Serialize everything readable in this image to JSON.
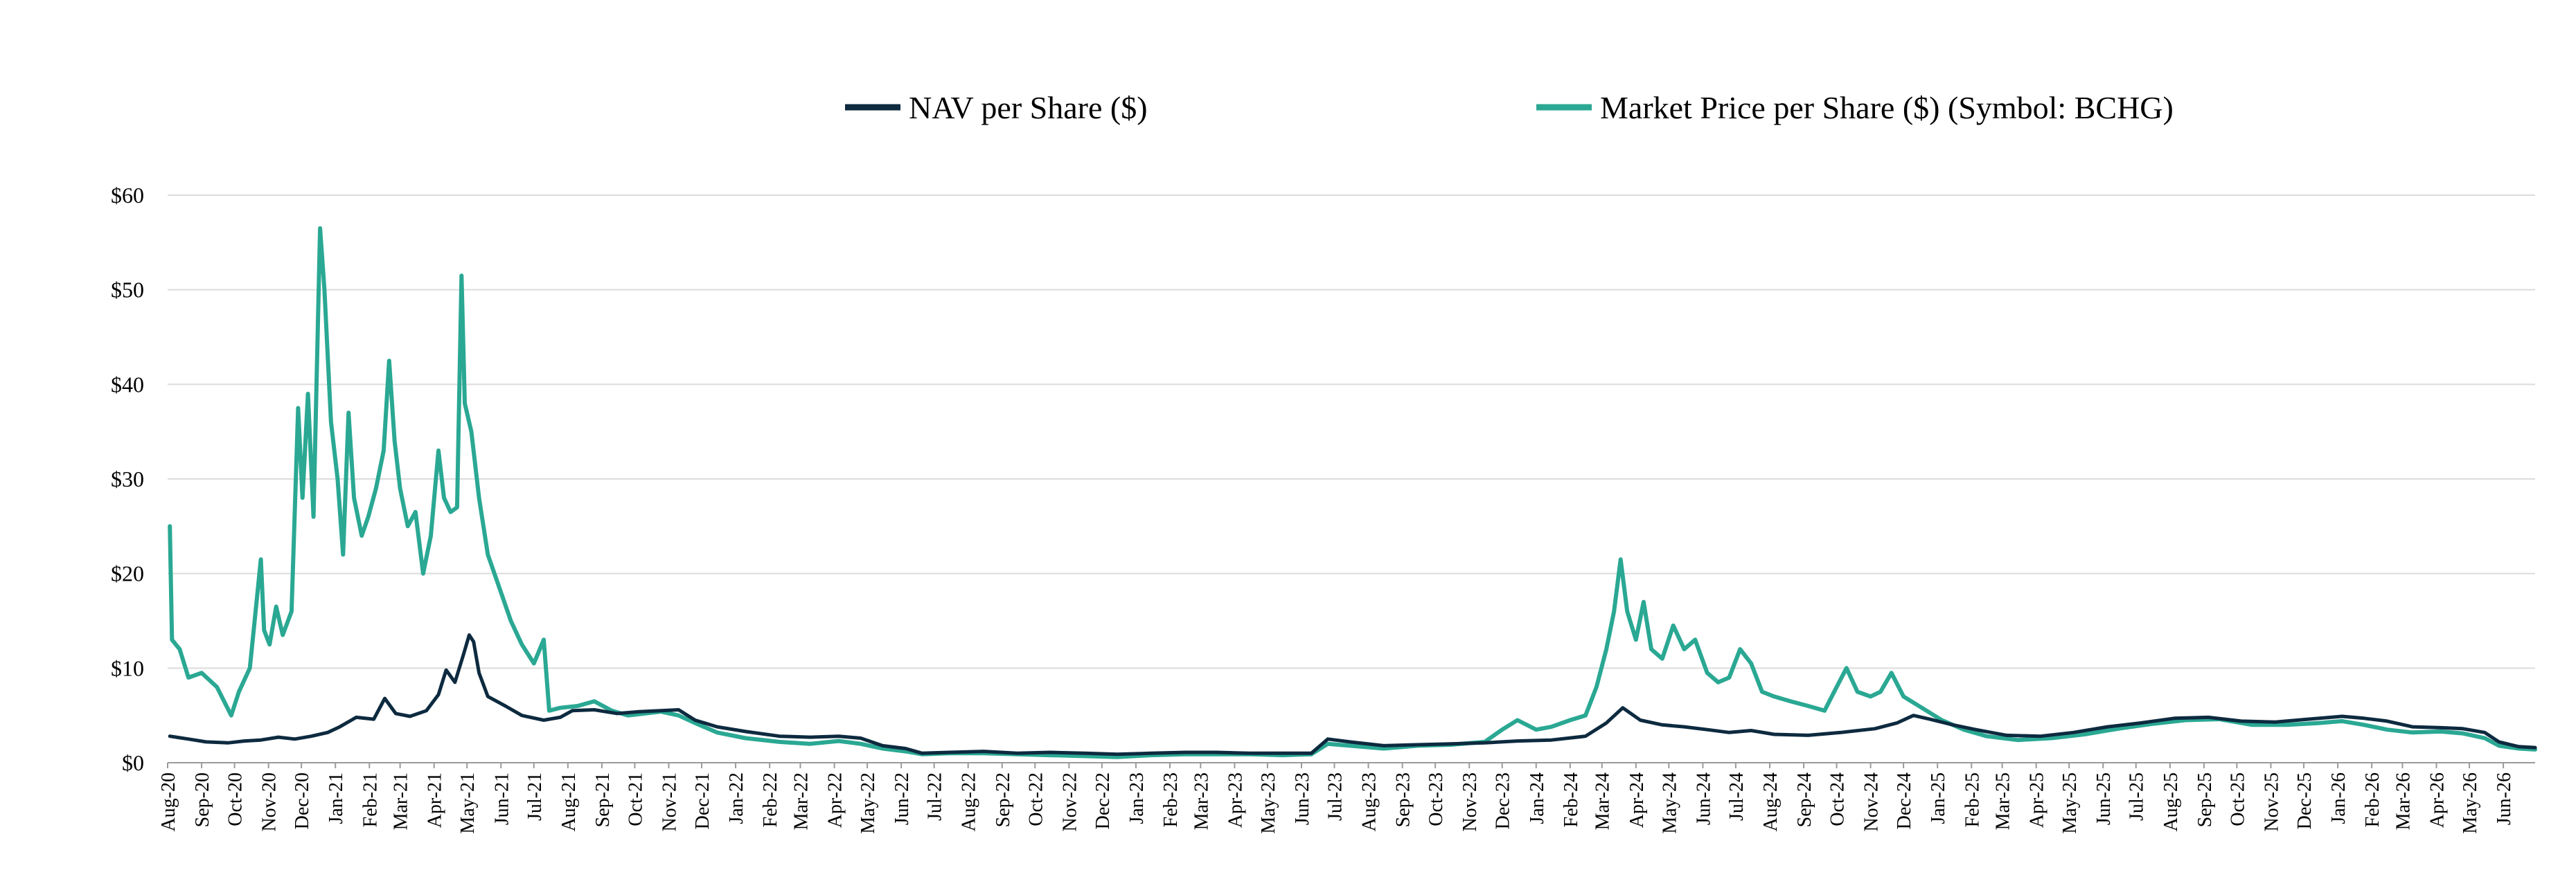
{
  "chart_data": {
    "type": "line",
    "xlabel": "",
    "ylabel": "",
    "x_range": [
      "2020-08-01",
      "2026-06-30"
    ],
    "ylim": [
      0,
      60
    ],
    "y_ticks": [
      0,
      10,
      20,
      30,
      40,
      50,
      60
    ],
    "y_tick_labels": [
      "$0",
      "$10",
      "$20",
      "$30",
      "$40",
      "$50",
      "$60"
    ],
    "x_tick_labels": [
      "Aug-20",
      "Sep-20",
      "Oct-20",
      "Nov-20",
      "Dec-20",
      "Jan-21",
      "Feb-21",
      "Mar-21",
      "Apr-21",
      "May-21",
      "Jun-21",
      "Jul-21",
      "Aug-21",
      "Sep-21",
      "Oct-21",
      "Nov-21",
      "Dec-21",
      "Jan-22",
      "Feb-22",
      "Mar-22",
      "Apr-22",
      "May-22",
      "Jun-22",
      "Jul-22",
      "Aug-22",
      "Sep-22",
      "Oct-22",
      "Nov-22",
      "Dec-22",
      "Jan-23",
      "Feb-23",
      "Mar-23",
      "Apr-23",
      "May-23",
      "Jun-23",
      "Jul-23",
      "Aug-23",
      "Sep-23",
      "Oct-23",
      "Nov-23",
      "Dec-23",
      "Jan-24",
      "Feb-24",
      "Mar-24",
      "Apr-24",
      "May-24",
      "Jun-24",
      "Jul-24",
      "Aug-24",
      "Sep-24",
      "Oct-24",
      "Nov-24",
      "Dec-24",
      "Jan-25",
      "Feb-25",
      "Mar-25",
      "Apr-25",
      "May-25",
      "Jun-25",
      "Jul-25",
      "Aug-25",
      "Sep-25",
      "Oct-25",
      "Nov-25",
      "Dec-25",
      "Jan-26",
      "Feb-26",
      "Mar-26",
      "Apr-26",
      "May-26",
      "Jun-26"
    ],
    "grid": true,
    "legend_position": "top-center",
    "series": [
      {
        "name": "NAV per Share ($)",
        "color": "#0d2a3f",
        "points": [
          [
            "2020-08-03",
            2.8
          ],
          [
            "2020-08-20",
            2.5
          ],
          [
            "2020-09-05",
            2.2
          ],
          [
            "2020-09-25",
            2.1
          ],
          [
            "2020-10-10",
            2.3
          ],
          [
            "2020-10-25",
            2.4
          ],
          [
            "2020-11-10",
            2.7
          ],
          [
            "2020-11-25",
            2.5
          ],
          [
            "2020-12-10",
            2.8
          ],
          [
            "2020-12-25",
            3.2
          ],
          [
            "2021-01-05",
            3.8
          ],
          [
            "2021-01-20",
            4.8
          ],
          [
            "2021-02-05",
            4.6
          ],
          [
            "2021-02-15",
            6.8
          ],
          [
            "2021-02-25",
            5.2
          ],
          [
            "2021-03-10",
            4.9
          ],
          [
            "2021-03-25",
            5.5
          ],
          [
            "2021-04-05",
            7.2
          ],
          [
            "2021-04-12",
            9.8
          ],
          [
            "2021-04-20",
            8.5
          ],
          [
            "2021-04-28",
            11.5
          ],
          [
            "2021-05-03",
            13.5
          ],
          [
            "2021-05-07",
            12.8
          ],
          [
            "2021-05-12",
            9.5
          ],
          [
            "2021-05-20",
            7.0
          ],
          [
            "2021-06-05",
            6.0
          ],
          [
            "2021-06-20",
            5.0
          ],
          [
            "2021-07-10",
            4.5
          ],
          [
            "2021-07-25",
            4.8
          ],
          [
            "2021-08-05",
            5.5
          ],
          [
            "2021-08-25",
            5.6
          ],
          [
            "2021-09-15",
            5.2
          ],
          [
            "2021-10-05",
            5.4
          ],
          [
            "2021-10-25",
            5.5
          ],
          [
            "2021-11-10",
            5.6
          ],
          [
            "2021-11-25",
            4.5
          ],
          [
            "2021-12-15",
            3.8
          ],
          [
            "2022-01-10",
            3.3
          ],
          [
            "2022-02-10",
            2.8
          ],
          [
            "2022-03-10",
            2.7
          ],
          [
            "2022-04-05",
            2.8
          ],
          [
            "2022-04-25",
            2.6
          ],
          [
            "2022-05-15",
            1.8
          ],
          [
            "2022-06-05",
            1.5
          ],
          [
            "2022-06-20",
            1.0
          ],
          [
            "2022-07-15",
            1.1
          ],
          [
            "2022-08-15",
            1.2
          ],
          [
            "2022-09-15",
            1.0
          ],
          [
            "2022-10-15",
            1.1
          ],
          [
            "2022-11-15",
            1.0
          ],
          [
            "2022-12-15",
            0.9
          ],
          [
            "2023-01-15",
            1.0
          ],
          [
            "2023-02-15",
            1.1
          ],
          [
            "2023-03-15",
            1.1
          ],
          [
            "2023-04-15",
            1.0
          ],
          [
            "2023-05-15",
            1.0
          ],
          [
            "2023-06-10",
            1.0
          ],
          [
            "2023-06-25",
            2.5
          ],
          [
            "2023-07-15",
            2.2
          ],
          [
            "2023-08-15",
            1.8
          ],
          [
            "2023-09-15",
            1.9
          ],
          [
            "2023-10-15",
            2.0
          ],
          [
            "2023-11-15",
            2.1
          ],
          [
            "2023-12-15",
            2.3
          ],
          [
            "2024-01-15",
            2.4
          ],
          [
            "2024-02-15",
            2.8
          ],
          [
            "2024-03-05",
            4.2
          ],
          [
            "2024-03-20",
            5.8
          ],
          [
            "2024-04-05",
            4.5
          ],
          [
            "2024-04-25",
            4.0
          ],
          [
            "2024-05-15",
            3.8
          ],
          [
            "2024-06-05",
            3.5
          ],
          [
            "2024-06-25",
            3.2
          ],
          [
            "2024-07-15",
            3.4
          ],
          [
            "2024-08-05",
            3.0
          ],
          [
            "2024-09-05",
            2.9
          ],
          [
            "2024-10-05",
            3.2
          ],
          [
            "2024-11-05",
            3.6
          ],
          [
            "2024-11-25",
            4.2
          ],
          [
            "2024-12-10",
            5.0
          ],
          [
            "2024-12-25",
            4.6
          ],
          [
            "2025-01-15",
            4.0
          ],
          [
            "2025-02-05",
            3.5
          ],
          [
            "2025-03-05",
            2.9
          ],
          [
            "2025-04-05",
            2.8
          ],
          [
            "2025-05-05",
            3.2
          ],
          [
            "2025-06-05",
            3.8
          ],
          [
            "2025-07-05",
            4.2
          ],
          [
            "2025-08-05",
            4.7
          ],
          [
            "2025-09-05",
            4.8
          ],
          [
            "2025-10-05",
            4.4
          ],
          [
            "2025-11-05",
            4.3
          ],
          [
            "2025-12-05",
            4.6
          ],
          [
            "2026-01-05",
            4.9
          ],
          [
            "2026-01-25",
            4.7
          ],
          [
            "2026-02-15",
            4.4
          ],
          [
            "2026-03-10",
            3.8
          ],
          [
            "2026-04-05",
            3.7
          ],
          [
            "2026-04-25",
            3.6
          ],
          [
            "2026-05-15",
            3.2
          ],
          [
            "2026-05-28",
            2.2
          ],
          [
            "2026-06-15",
            1.7
          ],
          [
            "2026-06-30",
            1.6
          ]
        ]
      },
      {
        "name": "Market Price per Share ($) (Symbol: BCHG)",
        "color": "#2aa893",
        "points": [
          [
            "2020-08-03",
            25.0
          ],
          [
            "2020-08-05",
            13.0
          ],
          [
            "2020-08-12",
            12.0
          ],
          [
            "2020-08-20",
            9.0
          ],
          [
            "2020-09-01",
            9.5
          ],
          [
            "2020-09-15",
            8.0
          ],
          [
            "2020-09-28",
            5.0
          ],
          [
            "2020-10-05",
            7.5
          ],
          [
            "2020-10-15",
            10.0
          ],
          [
            "2020-10-25",
            21.5
          ],
          [
            "2020-10-28",
            14.0
          ],
          [
            "2020-11-02",
            12.5
          ],
          [
            "2020-11-08",
            16.5
          ],
          [
            "2020-11-14",
            13.5
          ],
          [
            "2020-11-22",
            16.0
          ],
          [
            "2020-11-28",
            37.5
          ],
          [
            "2020-12-02",
            28.0
          ],
          [
            "2020-12-07",
            39.0
          ],
          [
            "2020-12-12",
            26.0
          ],
          [
            "2020-12-18",
            56.5
          ],
          [
            "2020-12-22",
            50.0
          ],
          [
            "2020-12-28",
            36.0
          ],
          [
            "2021-01-03",
            30.0
          ],
          [
            "2021-01-08",
            22.0
          ],
          [
            "2021-01-13",
            37.0
          ],
          [
            "2021-01-18",
            28.0
          ],
          [
            "2021-01-25",
            24.0
          ],
          [
            "2021-01-31",
            26.0
          ],
          [
            "2021-02-07",
            29.0
          ],
          [
            "2021-02-14",
            33.0
          ],
          [
            "2021-02-19",
            42.5
          ],
          [
            "2021-02-24",
            34.0
          ],
          [
            "2021-03-01",
            29.0
          ],
          [
            "2021-03-08",
            25.0
          ],
          [
            "2021-03-15",
            26.5
          ],
          [
            "2021-03-22",
            20.0
          ],
          [
            "2021-03-29",
            24.0
          ],
          [
            "2021-04-05",
            33.0
          ],
          [
            "2021-04-10",
            28.0
          ],
          [
            "2021-04-16",
            26.5
          ],
          [
            "2021-04-22",
            27.0
          ],
          [
            "2021-04-26",
            51.5
          ],
          [
            "2021-04-29",
            38.0
          ],
          [
            "2021-05-05",
            35.0
          ],
          [
            "2021-05-12",
            28.0
          ],
          [
            "2021-05-20",
            22.0
          ],
          [
            "2021-06-01",
            18.0
          ],
          [
            "2021-06-10",
            15.0
          ],
          [
            "2021-06-20",
            12.5
          ],
          [
            "2021-07-01",
            10.5
          ],
          [
            "2021-07-10",
            13.0
          ],
          [
            "2021-07-15",
            5.5
          ],
          [
            "2021-07-25",
            5.8
          ],
          [
            "2021-08-10",
            6.0
          ],
          [
            "2021-08-25",
            6.5
          ],
          [
            "2021-09-10",
            5.5
          ],
          [
            "2021-09-25",
            5.0
          ],
          [
            "2021-10-10",
            5.2
          ],
          [
            "2021-10-25",
            5.4
          ],
          [
            "2021-11-10",
            5.0
          ],
          [
            "2021-11-25",
            4.2
          ],
          [
            "2021-12-15",
            3.2
          ],
          [
            "2022-01-10",
            2.6
          ],
          [
            "2022-02-10",
            2.2
          ],
          [
            "2022-03-10",
            2.0
          ],
          [
            "2022-04-05",
            2.3
          ],
          [
            "2022-04-25",
            2.0
          ],
          [
            "2022-05-15",
            1.5
          ],
          [
            "2022-06-05",
            1.2
          ],
          [
            "2022-06-20",
            0.9
          ],
          [
            "2022-07-15",
            1.0
          ],
          [
            "2022-08-15",
            1.0
          ],
          [
            "2022-09-15",
            0.9
          ],
          [
            "2022-10-15",
            0.8
          ],
          [
            "2022-11-15",
            0.7
          ],
          [
            "2022-12-15",
            0.6
          ],
          [
            "2023-01-15",
            0.8
          ],
          [
            "2023-02-15",
            0.9
          ],
          [
            "2023-03-15",
            0.9
          ],
          [
            "2023-04-15",
            0.9
          ],
          [
            "2023-05-15",
            0.8
          ],
          [
            "2023-06-10",
            0.9
          ],
          [
            "2023-06-25",
            2.0
          ],
          [
            "2023-07-15",
            1.8
          ],
          [
            "2023-08-15",
            1.5
          ],
          [
            "2023-09-15",
            1.8
          ],
          [
            "2023-10-15",
            1.9
          ],
          [
            "2023-11-15",
            2.2
          ],
          [
            "2023-12-01",
            3.5
          ],
          [
            "2023-12-15",
            4.5
          ],
          [
            "2024-01-01",
            3.5
          ],
          [
            "2024-01-15",
            3.8
          ],
          [
            "2024-02-01",
            4.5
          ],
          [
            "2024-02-15",
            5.0
          ],
          [
            "2024-02-25",
            8.0
          ],
          [
            "2024-03-05",
            12.0
          ],
          [
            "2024-03-12",
            16.0
          ],
          [
            "2024-03-18",
            21.5
          ],
          [
            "2024-03-24",
            16.0
          ],
          [
            "2024-04-01",
            13.0
          ],
          [
            "2024-04-08",
            17.0
          ],
          [
            "2024-04-15",
            12.0
          ],
          [
            "2024-04-25",
            11.0
          ],
          [
            "2024-05-05",
            14.5
          ],
          [
            "2024-05-15",
            12.0
          ],
          [
            "2024-05-25",
            13.0
          ],
          [
            "2024-06-05",
            9.5
          ],
          [
            "2024-06-15",
            8.5
          ],
          [
            "2024-06-25",
            9.0
          ],
          [
            "2024-07-05",
            12.0
          ],
          [
            "2024-07-15",
            10.5
          ],
          [
            "2024-07-25",
            7.5
          ],
          [
            "2024-08-05",
            7.0
          ],
          [
            "2024-08-20",
            6.5
          ],
          [
            "2024-09-05",
            6.0
          ],
          [
            "2024-09-20",
            5.5
          ],
          [
            "2024-10-01",
            8.0
          ],
          [
            "2024-10-10",
            10.0
          ],
          [
            "2024-10-20",
            7.5
          ],
          [
            "2024-11-01",
            7.0
          ],
          [
            "2024-11-10",
            7.5
          ],
          [
            "2024-11-20",
            9.5
          ],
          [
            "2024-12-01",
            7.0
          ],
          [
            "2024-12-15",
            6.0
          ],
          [
            "2025-01-05",
            4.5
          ],
          [
            "2025-01-25",
            3.5
          ],
          [
            "2025-02-15",
            2.8
          ],
          [
            "2025-03-15",
            2.4
          ],
          [
            "2025-04-15",
            2.6
          ],
          [
            "2025-05-15",
            3.0
          ],
          [
            "2025-06-15",
            3.6
          ],
          [
            "2025-07-15",
            4.1
          ],
          [
            "2025-08-15",
            4.5
          ],
          [
            "2025-09-15",
            4.6
          ],
          [
            "2025-10-15",
            4.0
          ],
          [
            "2025-11-15",
            4.0
          ],
          [
            "2025-12-15",
            4.2
          ],
          [
            "2026-01-05",
            4.4
          ],
          [
            "2026-01-25",
            4.0
          ],
          [
            "2026-02-15",
            3.5
          ],
          [
            "2026-03-10",
            3.2
          ],
          [
            "2026-04-05",
            3.3
          ],
          [
            "2026-04-25",
            3.1
          ],
          [
            "2026-05-15",
            2.6
          ],
          [
            "2026-05-28",
            1.8
          ],
          [
            "2026-06-15",
            1.5
          ],
          [
            "2026-06-30",
            1.4
          ]
        ]
      }
    ]
  }
}
